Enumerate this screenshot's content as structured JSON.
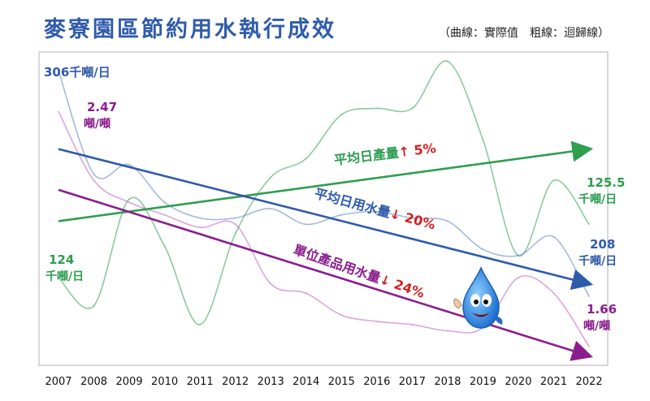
{
  "page": {
    "title": "麥寮園區節約用水執行成效",
    "note": "（曲線：實際值　粗線：迴歸線）",
    "accent": "#2f5bab"
  },
  "chart_data": {
    "type": "line",
    "title": "麥寮園區節約用水執行成效",
    "x": [
      "2007",
      "2008",
      "2009",
      "2010",
      "2011",
      "2012",
      "2013",
      "2014",
      "2015",
      "2016",
      "2017",
      "2018",
      "2019",
      "2020",
      "2021",
      "2022"
    ],
    "series": [
      {
        "name": "平均日產量",
        "role": "actual",
        "color": "#2e9e4f",
        "values": [
          0.72,
          0.81,
          0.47,
          0.62,
          0.87,
          0.58,
          0.4,
          0.34,
          0.2,
          0.18,
          0.18,
          0.03,
          0.28,
          0.65,
          0.41,
          0.55
        ]
      },
      {
        "name": "平均日用水量",
        "role": "actual",
        "color": "#5b7fc7",
        "values": [
          0.06,
          0.39,
          0.36,
          0.48,
          0.53,
          0.53,
          0.5,
          0.55,
          0.52,
          0.51,
          0.53,
          0.54,
          0.63,
          0.65,
          0.59,
          0.78
        ]
      },
      {
        "name": "單位產品用水量",
        "role": "actual",
        "color": "#c05bc0",
        "values": [
          0.19,
          0.41,
          0.48,
          0.52,
          0.56,
          0.55,
          0.74,
          0.77,
          0.84,
          0.86,
          0.87,
          0.89,
          0.88,
          0.72,
          0.77,
          0.94
        ]
      },
      {
        "name": "平均日產量",
        "role": "regression",
        "color": "#2e9e4f",
        "start": 0.54,
        "end": 0.31,
        "annotation": "平均日產量",
        "arrow": "↑",
        "pct": "5%"
      },
      {
        "name": "平均日用水量",
        "role": "regression",
        "color": "#2f5bab",
        "start": 0.31,
        "end": 0.74,
        "annotation": "平均日用水量",
        "arrow": "↓",
        "pct": "20%"
      },
      {
        "name": "單位產品用水量",
        "role": "regression",
        "color": "#8b1d8e",
        "start": 0.44,
        "end": 0.97,
        "annotation": "單位產品用水量",
        "arrow": "↓",
        "pct": "24%"
      }
    ],
    "endpoint_labels": {
      "water_start": {
        "value": "306",
        "unit": "千噸/日"
      },
      "unit_start": {
        "value": "2.47",
        "unit": "噸/噸"
      },
      "prod_start": {
        "value": "124",
        "unit": "千噸/日"
      },
      "prod_end": {
        "value": "125.5",
        "unit": "千噸/日"
      },
      "water_end": {
        "value": "208",
        "unit": "千噸/日"
      },
      "unit_end": {
        "value": "1.66",
        "unit": "噸/噸"
      }
    },
    "colors": {
      "prod": "#2e9e4f",
      "water": "#2f5bab",
      "unit": "#8b1d8e",
      "down_arrow": "#d42020",
      "pct": "#d42020"
    },
    "mascot": "water-drop-mascot-icon"
  }
}
